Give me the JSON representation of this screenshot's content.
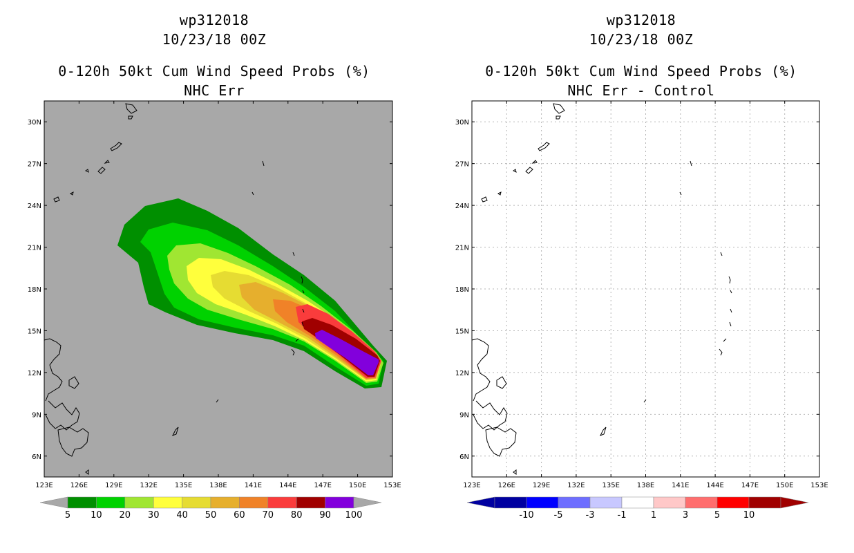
{
  "left_panel": {
    "title_line1": "wp312018",
    "title_line2": "10/23/18 00Z",
    "title_line3": "0-120h 50kt Cum Wind Speed Probs (%)",
    "title_line4": "NHC Err",
    "background_color": "#a8a8a8",
    "colorbar": {
      "colors": [
        "#008f00",
        "#00d200",
        "#a0e632",
        "#ffff3c",
        "#e6dc32",
        "#e6af2d",
        "#f08228",
        "#fa3c3c",
        "#a00000",
        "#8200dc"
      ],
      "labels": [
        "5",
        "10",
        "20",
        "30",
        "40",
        "50",
        "60",
        "70",
        "80",
        "90",
        "100"
      ]
    }
  },
  "right_panel": {
    "title_line1": "wp312018",
    "title_line2": "10/23/18 00Z",
    "title_line3": "0-120h 50kt Cum Wind Speed Probs (%)",
    "title_line4": "NHC Err - Control",
    "background_color": "#ffffff",
    "colorbar": {
      "colors": [
        "#0000a0",
        "#0000ff",
        "#6e6eff",
        "#c8c8ff",
        "#ffffff",
        "#ffc8c8",
        "#ff6e6e",
        "#ff0000",
        "#a00000"
      ],
      "labels": [
        "-10",
        "-5",
        "-3",
        "-1",
        "1",
        "3",
        "5",
        "10"
      ]
    }
  },
  "axes": {
    "lon_ticks": [
      "123E",
      "126E",
      "129E",
      "132E",
      "135E",
      "138E",
      "141E",
      "144E",
      "147E",
      "150E",
      "153E"
    ],
    "lat_ticks": [
      "30N",
      "27N",
      "24N",
      "21N",
      "18N",
      "15N",
      "12N",
      "9N",
      "6N"
    ],
    "lon_range": [
      123,
      153
    ],
    "lat_range": [
      4.5,
      31.5
    ]
  }
}
